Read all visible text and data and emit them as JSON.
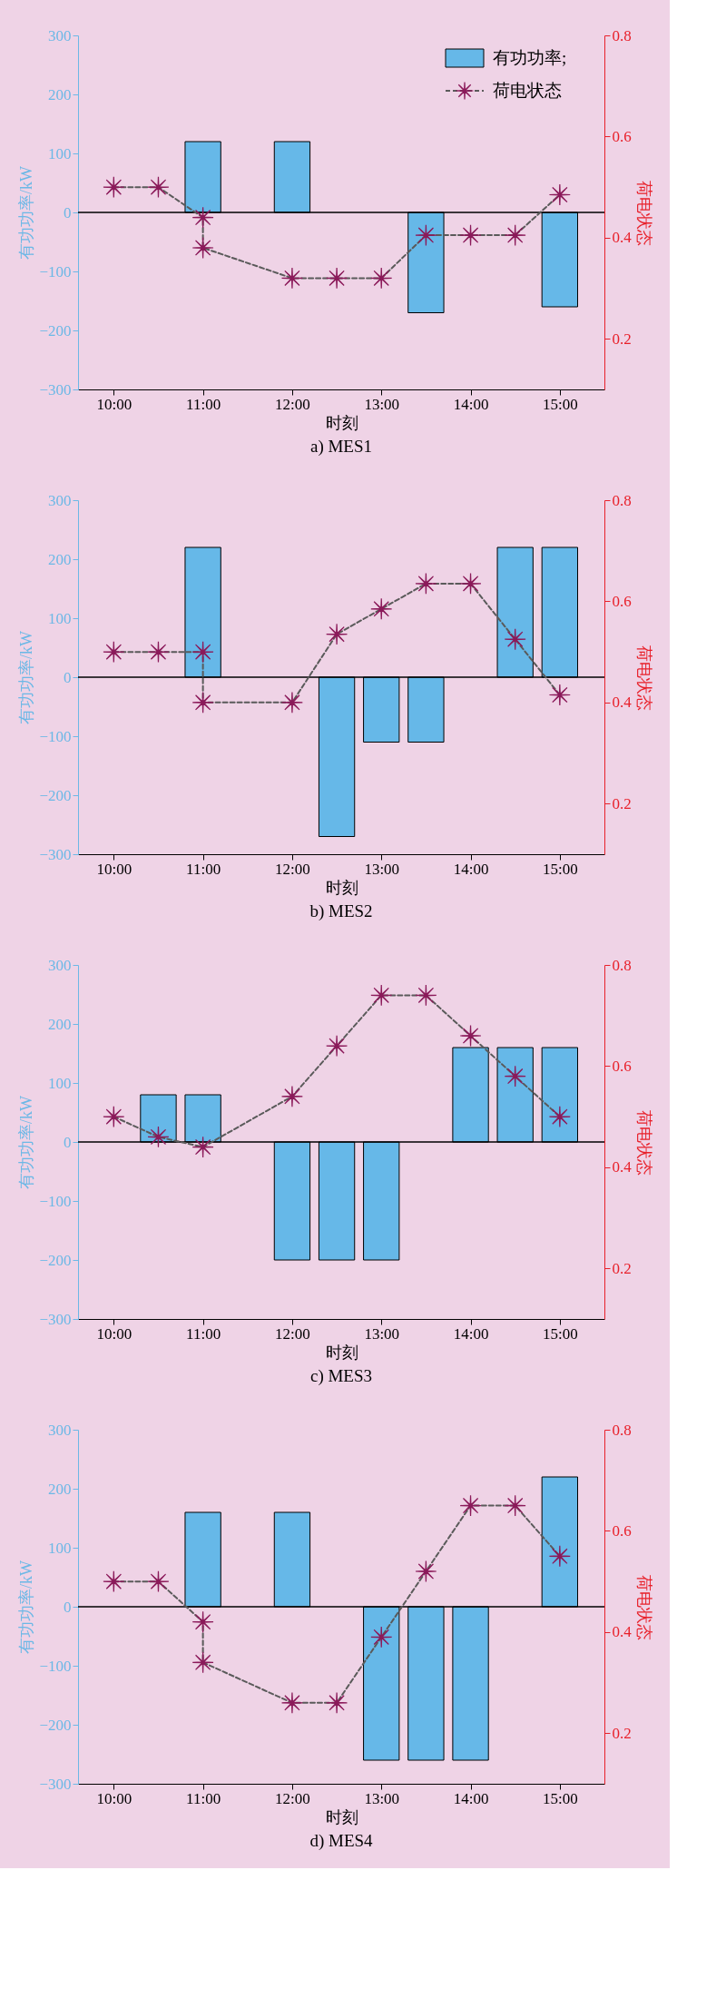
{
  "chart_data": [
    {
      "type": "bar",
      "title": "a) MES1",
      "xlabel": "时刻",
      "ylabel": "有功功率/kW",
      "y2label": "荷电状态",
      "legend": "top right",
      "grid": false,
      "xlim": [
        9.6,
        15.5
      ],
      "xticks": [
        {
          "value": 10,
          "label": "10:00"
        },
        {
          "value": 11,
          "label": "11:00"
        },
        {
          "value": 12,
          "label": "12:00"
        },
        {
          "value": 13,
          "label": "13:00"
        },
        {
          "value": 14,
          "label": "14:00"
        },
        {
          "value": 15,
          "label": "15:00"
        }
      ],
      "ylim": [
        -300,
        300
      ],
      "yticks": [
        -300,
        -200,
        -100,
        0,
        100,
        200,
        300
      ],
      "y2lim": [
        0.1,
        0.8
      ],
      "y2ticks": [
        0.2,
        0.4,
        0.6,
        0.8
      ],
      "ref_lines": [
        {
          "axis": "y",
          "value": 0,
          "color": "#000000"
        }
      ],
      "series": [
        {
          "name": "有功功率;",
          "color": "#66b8e8",
          "x": [
            11,
            12,
            13.5,
            15
          ],
          "values": [
            120,
            120,
            -170,
            -160
          ]
        },
        {
          "name": "荷电状态",
          "type": "line",
          "axis": "y2",
          "color": "#8b1a5a",
          "marker": "star",
          "line_style": "dashed",
          "x": [
            10,
            10.5,
            11,
            11,
            12,
            12.5,
            13,
            13.5,
            14,
            14.5,
            15
          ],
          "values": [
            0.5,
            0.5,
            0.44,
            0.38,
            0.32,
            0.32,
            0.32,
            0.405,
            0.405,
            0.405,
            0.485
          ]
        }
      ]
    },
    {
      "type": "bar",
      "title": "b) MES2",
      "xlabel": "时刻",
      "ylabel": "有功功率/kW",
      "y2label": "荷电状态",
      "grid": false,
      "xlim": [
        9.6,
        15.5
      ],
      "xticks": [
        {
          "value": 10,
          "label": "10:00"
        },
        {
          "value": 11,
          "label": "11:00"
        },
        {
          "value": 12,
          "label": "12:00"
        },
        {
          "value": 13,
          "label": "13:00"
        },
        {
          "value": 14,
          "label": "14:00"
        },
        {
          "value": 15,
          "label": "15:00"
        }
      ],
      "ylim": [
        -300,
        300
      ],
      "yticks": [
        -300,
        -200,
        -100,
        0,
        100,
        200,
        300
      ],
      "y2lim": [
        0.1,
        0.8
      ],
      "y2ticks": [
        0.2,
        0.4,
        0.6,
        0.8
      ],
      "ref_lines": [
        {
          "axis": "y",
          "value": 0,
          "color": "#000000"
        }
      ],
      "series": [
        {
          "color": "#66b8e8",
          "x": [
            11,
            12.5,
            13,
            13.5,
            14.5,
            15
          ],
          "values": [
            220,
            -270,
            -110,
            -110,
            220,
            220
          ]
        },
        {
          "type": "line",
          "axis": "y2",
          "color": "#8b1a5a",
          "marker": "star",
          "line_style": "dashed",
          "x": [
            10,
            10.5,
            11,
            11,
            12,
            12.5,
            13,
            13.5,
            14,
            14.5,
            15
          ],
          "values": [
            0.5,
            0.5,
            0.5,
            0.4,
            0.4,
            0.535,
            0.585,
            0.635,
            0.635,
            0.525,
            0.415
          ]
        }
      ]
    },
    {
      "type": "bar",
      "title": "c) MES3",
      "xlabel": "时刻",
      "ylabel": "有功功率/kW",
      "y2label": "荷电状态",
      "grid": false,
      "xlim": [
        9.6,
        15.5
      ],
      "xticks": [
        {
          "value": 10,
          "label": "10:00"
        },
        {
          "value": 11,
          "label": "11:00"
        },
        {
          "value": 12,
          "label": "12:00"
        },
        {
          "value": 13,
          "label": "13:00"
        },
        {
          "value": 14,
          "label": "14:00"
        },
        {
          "value": 15,
          "label": "15:00"
        }
      ],
      "ylim": [
        -300,
        300
      ],
      "yticks": [
        -300,
        -200,
        -100,
        0,
        100,
        200,
        300
      ],
      "y2lim": [
        0.1,
        0.8
      ],
      "y2ticks": [
        0.2,
        0.4,
        0.6,
        0.8
      ],
      "ref_lines": [
        {
          "axis": "y",
          "value": 0,
          "color": "#000000"
        }
      ],
      "series": [
        {
          "color": "#66b8e8",
          "x": [
            10.5,
            11,
            12,
            12.5,
            13,
            14,
            14.5,
            15
          ],
          "values": [
            80,
            80,
            -200,
            -200,
            -200,
            160,
            160,
            160
          ]
        },
        {
          "type": "line",
          "axis": "y2",
          "color": "#8b1a5a",
          "marker": "star",
          "line_style": "dashed",
          "x": [
            10,
            10.5,
            11,
            12,
            12.5,
            13,
            13.5,
            14,
            14.5,
            15
          ],
          "values": [
            0.5,
            0.46,
            0.44,
            0.54,
            0.64,
            0.74,
            0.74,
            0.66,
            0.58,
            0.5
          ]
        }
      ]
    },
    {
      "type": "bar",
      "title": "d) MES4",
      "xlabel": "时刻",
      "ylabel": "有功功率/kW",
      "y2label": "荷电状态",
      "grid": false,
      "xlim": [
        9.6,
        15.5
      ],
      "xticks": [
        {
          "value": 10,
          "label": "10:00"
        },
        {
          "value": 11,
          "label": "11:00"
        },
        {
          "value": 12,
          "label": "12:00"
        },
        {
          "value": 13,
          "label": "13:00"
        },
        {
          "value": 14,
          "label": "14:00"
        },
        {
          "value": 15,
          "label": "15:00"
        }
      ],
      "ylim": [
        -300,
        300
      ],
      "yticks": [
        -300,
        -200,
        -100,
        0,
        100,
        200,
        300
      ],
      "y2lim": [
        0.1,
        0.8
      ],
      "y2ticks": [
        0.2,
        0.4,
        0.6,
        0.8
      ],
      "ref_lines": [
        {
          "axis": "y",
          "value": 0,
          "color": "#000000"
        }
      ],
      "series": [
        {
          "color": "#66b8e8",
          "x": [
            11,
            12,
            13,
            13.5,
            14,
            15
          ],
          "values": [
            160,
            160,
            -260,
            -260,
            -260,
            220
          ]
        },
        {
          "type": "line",
          "axis": "y2",
          "color": "#8b1a5a",
          "marker": "star",
          "line_style": "dashed",
          "x": [
            10,
            10.5,
            11,
            11,
            12,
            12.5,
            13,
            13.5,
            14,
            14.5,
            15
          ],
          "values": [
            0.5,
            0.5,
            0.42,
            0.34,
            0.26,
            0.26,
            0.39,
            0.52,
            0.65,
            0.65,
            0.55
          ]
        }
      ]
    }
  ]
}
